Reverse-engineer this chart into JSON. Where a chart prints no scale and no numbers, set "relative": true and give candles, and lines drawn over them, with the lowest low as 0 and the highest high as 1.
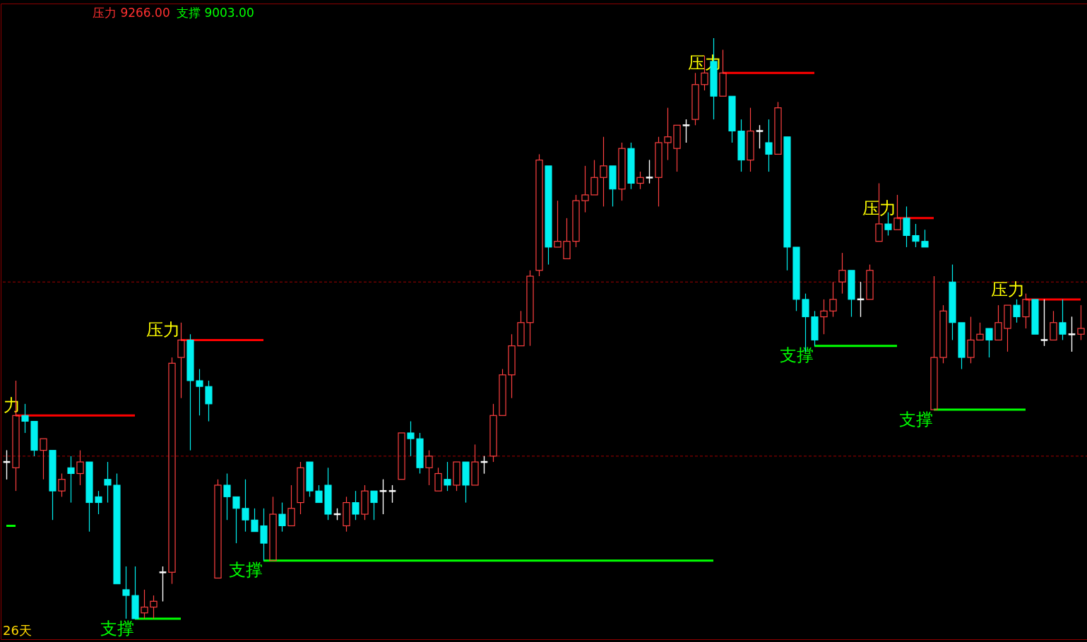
{
  "chart_data": {
    "type": "candlestick",
    "relative": true,
    "categories": [
      null,
      null,
      null,
      null,
      null,
      null,
      null,
      null,
      null,
      null,
      null,
      null,
      null,
      null,
      null,
      null,
      null,
      null,
      null,
      null,
      null,
      null,
      null,
      null,
      null,
      null,
      null,
      null,
      null,
      null,
      null,
      null,
      null,
      null,
      null,
      null,
      null,
      null,
      null,
      null,
      null,
      null,
      null,
      null,
      null,
      null,
      null,
      null,
      null,
      null,
      null,
      null,
      null,
      null,
      null,
      null,
      null,
      null,
      null,
      null,
      null,
      null,
      null,
      null,
      null,
      null,
      null,
      null,
      null,
      null,
      null,
      null,
      null,
      null,
      null,
      null,
      null,
      null,
      null,
      null,
      null,
      null,
      null,
      null,
      null,
      null,
      null,
      null,
      null,
      null,
      null,
      null,
      null,
      null,
      null,
      null,
      null,
      null,
      null,
      null,
      null,
      null,
      null,
      null,
      null,
      null,
      null,
      null,
      null,
      null,
      null,
      null,
      null,
      null,
      null,
      null,
      null,
      null
    ],
    "ohlc": [
      [
        0.27,
        0.29,
        0.24,
        0.27
      ],
      [
        0.26,
        0.41,
        0.22,
        0.35
      ],
      [
        0.35,
        0.37,
        0.32,
        0.34
      ],
      [
        0.34,
        0.34,
        0.28,
        0.29
      ],
      [
        0.29,
        0.31,
        0.24,
        0.31
      ],
      [
        0.29,
        0.29,
        0.17,
        0.22
      ],
      [
        0.22,
        0.25,
        0.21,
        0.24
      ],
      [
        0.26,
        0.28,
        0.2,
        0.25
      ],
      [
        0.25,
        0.29,
        0.23,
        0.27
      ],
      [
        0.27,
        0.27,
        0.15,
        0.2
      ],
      [
        0.21,
        0.22,
        0.18,
        0.2
      ],
      [
        0.24,
        0.27,
        0.2,
        0.23
      ],
      [
        0.23,
        0.25,
        0.06,
        0.06
      ],
      [
        0.05,
        0.09,
        0,
        0.04
      ],
      [
        0.04,
        0.09,
        0,
        0
      ],
      [
        0.01,
        0.05,
        0,
        0.02
      ],
      [
        0.02,
        0.04,
        0,
        0.03
      ],
      [
        0.08,
        0.09,
        0.03,
        0.08
      ],
      [
        0.08,
        0.45,
        0.06,
        0.44
      ],
      [
        0.45,
        0.51,
        0.38,
        0.48
      ],
      [
        0.48,
        0.49,
        0.29,
        0.41
      ],
      [
        0.41,
        0.43,
        0.35,
        0.4
      ],
      [
        0.4,
        0.41,
        0.34,
        0.37
      ],
      [
        0.07,
        0.24,
        0.07,
        0.23
      ],
      [
        0.23,
        0.25,
        0.17,
        0.21
      ],
      [
        0.21,
        0.21,
        0.13,
        0.19
      ],
      [
        0.19,
        0.24,
        0.15,
        0.17
      ],
      [
        0.17,
        0.19,
        0.15,
        0.15
      ],
      [
        0.16,
        0.19,
        0.1,
        0.13
      ],
      [
        0.1,
        0.21,
        0.1,
        0.18
      ],
      [
        0.18,
        0.2,
        0.15,
        0.16
      ],
      [
        0.16,
        0.23,
        0.16,
        0.19
      ],
      [
        0.2,
        0.27,
        0.18,
        0.26
      ],
      [
        0.27,
        0.27,
        0.21,
        0.22
      ],
      [
        0.22,
        0.23,
        0.2,
        0.2
      ],
      [
        0.23,
        0.26,
        0.17,
        0.18
      ],
      [
        0.18,
        0.19,
        0.17,
        0.18
      ],
      [
        0.16,
        0.21,
        0.15,
        0.2
      ],
      [
        0.2,
        0.22,
        0.17,
        0.18
      ],
      [
        0.18,
        0.23,
        0.17,
        0.22
      ],
      [
        0.22,
        0.22,
        0.17,
        0.2
      ],
      [
        0.22,
        0.24,
        0.18,
        0.22
      ],
      [
        0.22,
        0.23,
        0.2,
        0.22
      ],
      [
        0.24,
        0.32,
        0.24,
        0.32
      ],
      [
        0.32,
        0.34,
        0.28,
        0.31
      ],
      [
        0.31,
        0.32,
        0.25,
        0.26
      ],
      [
        0.26,
        0.29,
        0.23,
        0.28
      ],
      [
        0.22,
        0.26,
        0.22,
        0.25
      ],
      [
        0.24,
        0.27,
        0.22,
        0.23
      ],
      [
        0.23,
        0.27,
        0.22,
        0.27
      ],
      [
        0.27,
        0.27,
        0.2,
        0.23
      ],
      [
        0.23,
        0.3,
        0.23,
        0.27
      ],
      [
        0.27,
        0.28,
        0.25,
        0.27
      ],
      [
        0.28,
        0.37,
        0.27,
        0.35
      ],
      [
        0.35,
        0.43,
        0.35,
        0.42
      ],
      [
        0.42,
        0.49,
        0.38,
        0.47
      ],
      [
        0.47,
        0.53,
        0.47,
        0.51
      ],
      [
        0.51,
        0.6,
        0.47,
        0.59
      ],
      [
        0.6,
        0.8,
        0.59,
        0.79
      ],
      [
        0.78,
        0.78,
        0.61,
        0.64
      ],
      [
        0.64,
        0.72,
        0.64,
        0.65
      ],
      [
        0.62,
        0.69,
        0.62,
        0.65
      ],
      [
        0.65,
        0.73,
        0.64,
        0.72
      ],
      [
        0.72,
        0.78,
        0.7,
        0.73
      ],
      [
        0.73,
        0.79,
        0.73,
        0.76
      ],
      [
        0.76,
        0.83,
        0.71,
        0.78
      ],
      [
        0.78,
        0.78,
        0.71,
        0.74
      ],
      [
        0.74,
        0.82,
        0.72,
        0.81
      ],
      [
        0.81,
        0.82,
        0.74,
        0.75
      ],
      [
        0.75,
        0.77,
        0.74,
        0.76
      ],
      [
        0.76,
        0.79,
        0.75,
        0.76
      ],
      [
        0.76,
        0.83,
        0.71,
        0.82
      ],
      [
        0.82,
        0.88,
        0.79,
        0.83
      ],
      [
        0.81,
        0.85,
        0.77,
        0.85
      ],
      [
        0.85,
        0.86,
        0.82,
        0.85
      ],
      [
        0.86,
        0.94,
        0.85,
        0.92
      ],
      [
        0.92,
        0.97,
        0.91,
        0.94
      ],
      [
        0.96,
        1,
        0.86,
        0.9
      ],
      [
        0.9,
        0.98,
        0.9,
        0.94
      ],
      [
        0.9,
        0.9,
        0.82,
        0.84
      ],
      [
        0.84,
        0.86,
        0.77,
        0.79
      ],
      [
        0.79,
        0.88,
        0.77,
        0.84
      ],
      [
        0.84,
        0.85,
        0.81,
        0.84
      ],
      [
        0.82,
        0.86,
        0.77,
        0.8
      ],
      [
        0.8,
        0.89,
        0.8,
        0.88
      ],
      [
        0.83,
        0.83,
        0.6,
        0.64
      ],
      [
        0.64,
        0.64,
        0.53,
        0.55
      ],
      [
        0.55,
        0.56,
        0.46,
        0.52
      ],
      [
        0.52,
        0.53,
        0.47,
        0.48
      ],
      [
        0.52,
        0.55,
        0.49,
        0.53
      ],
      [
        0.53,
        0.58,
        0.52,
        0.55
      ],
      [
        0.58,
        0.63,
        0.56,
        0.6
      ],
      [
        0.6,
        0.6,
        0.52,
        0.55
      ],
      [
        0.55,
        0.58,
        0.52,
        0.55
      ],
      [
        0.55,
        0.61,
        0.55,
        0.6
      ],
      [
        0.65,
        0.75,
        0.65,
        0.68
      ],
      [
        0.68,
        0.7,
        0.66,
        0.67
      ],
      [
        0.67,
        0.73,
        0.67,
        0.69
      ],
      [
        0.69,
        0.71,
        0.64,
        0.66
      ],
      [
        0.66,
        0.68,
        0.64,
        0.65
      ],
      [
        0.65,
        0.67,
        0.64,
        0.64
      ],
      [
        0.36,
        0.59,
        0.36,
        0.45
      ],
      [
        0.45,
        0.54,
        0.44,
        0.53
      ],
      [
        0.58,
        0.61,
        0.48,
        0.51
      ],
      [
        0.51,
        0.51,
        0.43,
        0.45
      ],
      [
        0.45,
        0.52,
        0.44,
        0.48
      ],
      [
        0.48,
        0.51,
        0.48,
        0.49
      ],
      [
        0.5,
        0.5,
        0.45,
        0.48
      ],
      [
        0.48,
        0.54,
        0.48,
        0.51
      ],
      [
        0.5,
        0.54,
        0.46,
        0.54
      ],
      [
        0.54,
        0.55,
        0.51,
        0.52
      ],
      [
        0.52,
        0.56,
        0.5,
        0.55
      ],
      [
        0.55,
        0.55,
        0.49,
        0.49
      ],
      [
        0.48,
        0.55,
        0.47,
        0.48
      ],
      [
        0.48,
        0.53,
        0.48,
        0.51
      ],
      [
        0.51,
        0.55,
        0.48,
        0.49
      ],
      [
        0.49,
        0.52,
        0.46,
        0.49
      ],
      [
        0.49,
        0.54,
        0.48,
        0.5
      ]
    ],
    "series": [
      {
        "type": "line",
        "name": "力",
        "color": "#ff0000",
        "values": [
          null,
          0.35,
          0.35,
          0.35,
          0.35,
          0.35,
          0.35,
          0.35,
          0.35,
          0.35,
          0.35,
          0.35,
          0.35,
          0.35,
          0.35,
          null,
          null,
          null,
          null,
          null,
          null,
          null,
          null,
          null,
          null,
          null,
          null,
          null,
          null,
          null,
          null,
          null,
          null,
          null,
          null,
          null,
          null,
          null,
          null,
          null,
          null,
          null,
          null,
          null,
          null,
          null,
          null,
          null,
          null,
          null,
          null,
          null,
          null,
          null,
          null,
          null,
          null,
          null,
          null,
          null,
          null,
          null,
          null,
          null,
          null,
          null,
          null,
          null,
          null,
          null,
          null,
          null,
          null,
          null,
          null,
          null,
          null,
          null,
          null,
          null,
          null,
          null,
          null,
          null,
          null,
          null,
          null,
          null,
          null,
          null,
          null,
          null,
          null,
          null,
          null,
          null,
          null,
          null,
          null,
          null,
          null,
          null,
          null,
          null,
          null,
          null,
          null,
          null,
          null,
          null,
          null,
          null,
          null,
          null,
          null,
          null,
          null,
          null
        ]
      },
      {
        "type": "line",
        "name": "压力",
        "color": "#ff0000",
        "values": [
          null,
          null,
          null,
          null,
          null,
          null,
          null,
          null,
          null,
          null,
          null,
          null,
          null,
          null,
          null,
          null,
          null,
          null,
          null,
          0.48,
          0.48,
          0.48,
          0.48,
          0.48,
          0.48,
          0.48,
          0.48,
          0.48,
          0.48,
          null,
          null,
          null,
          null,
          null,
          null,
          null,
          null,
          null,
          null,
          null,
          null,
          null,
          null,
          null,
          null,
          null,
          null,
          null,
          null,
          null,
          null,
          null,
          null,
          null,
          null,
          null,
          null,
          null,
          null,
          null,
          null,
          null,
          null,
          null,
          null,
          null,
          null,
          null,
          null,
          null,
          null,
          null,
          null,
          null,
          null,
          null,
          null,
          null,
          null,
          null,
          null,
          null,
          null,
          null,
          null,
          null,
          null,
          null,
          null,
          null,
          null,
          null,
          null,
          null,
          null,
          null,
          null,
          null,
          null,
          null,
          null,
          null,
          null,
          null,
          null,
          null,
          null,
          null,
          null,
          null,
          null,
          null,
          null,
          null,
          null,
          null,
          null,
          null
        ]
      },
      {
        "type": "line",
        "name": "压力",
        "color": "#ff0000",
        "values": [
          null,
          null,
          null,
          null,
          null,
          null,
          null,
          null,
          null,
          null,
          null,
          null,
          null,
          null,
          null,
          null,
          null,
          null,
          null,
          null,
          null,
          null,
          null,
          null,
          null,
          null,
          null,
          null,
          null,
          null,
          null,
          null,
          null,
          null,
          null,
          null,
          null,
          null,
          null,
          null,
          null,
          null,
          null,
          null,
          null,
          null,
          null,
          null,
          null,
          null,
          null,
          null,
          null,
          null,
          null,
          null,
          null,
          null,
          null,
          null,
          null,
          null,
          null,
          null,
          null,
          null,
          null,
          null,
          null,
          null,
          null,
          null,
          null,
          null,
          null,
          null,
          null,
          null,
          0.94,
          0.94,
          0.94,
          0.94,
          0.94,
          0.94,
          0.94,
          0.94,
          0.94,
          0.94,
          0.94,
          null,
          null,
          null,
          null,
          null,
          null,
          null,
          null,
          null,
          null,
          null,
          null,
          null,
          null,
          null,
          null,
          null,
          null,
          null,
          null,
          null,
          null,
          null,
          null,
          null,
          null,
          null,
          null,
          null
        ]
      },
      {
        "type": "line",
        "name": "压力",
        "color": "#ff0000",
        "values": [
          null,
          null,
          null,
          null,
          null,
          null,
          null,
          null,
          null,
          null,
          null,
          null,
          null,
          null,
          null,
          null,
          null,
          null,
          null,
          null,
          null,
          null,
          null,
          null,
          null,
          null,
          null,
          null,
          null,
          null,
          null,
          null,
          null,
          null,
          null,
          null,
          null,
          null,
          null,
          null,
          null,
          null,
          null,
          null,
          null,
          null,
          null,
          null,
          null,
          null,
          null,
          null,
          null,
          null,
          null,
          null,
          null,
          null,
          null,
          null,
          null,
          null,
          null,
          null,
          null,
          null,
          null,
          null,
          null,
          null,
          null,
          null,
          null,
          null,
          null,
          null,
          null,
          null,
          null,
          null,
          null,
          null,
          null,
          null,
          null,
          null,
          null,
          null,
          null,
          null,
          null,
          null,
          null,
          null,
          null,
          null,
          null,
          0.69,
          0.69,
          0.69,
          0.69,
          0.69,
          null,
          null,
          null,
          null,
          null,
          null,
          null,
          null,
          null,
          null,
          null,
          null,
          null,
          null,
          null,
          null
        ]
      },
      {
        "type": "line",
        "name": "压力",
        "color": "#ff0000",
        "values": [
          null,
          null,
          null,
          null,
          null,
          null,
          null,
          null,
          null,
          null,
          null,
          null,
          null,
          null,
          null,
          null,
          null,
          null,
          null,
          null,
          null,
          null,
          null,
          null,
          null,
          null,
          null,
          null,
          null,
          null,
          null,
          null,
          null,
          null,
          null,
          null,
          null,
          null,
          null,
          null,
          null,
          null,
          null,
          null,
          null,
          null,
          null,
          null,
          null,
          null,
          null,
          null,
          null,
          null,
          null,
          null,
          null,
          null,
          null,
          null,
          null,
          null,
          null,
          null,
          null,
          null,
          null,
          null,
          null,
          null,
          null,
          null,
          null,
          null,
          null,
          null,
          null,
          null,
          null,
          null,
          null,
          null,
          null,
          null,
          null,
          null,
          null,
          null,
          null,
          null,
          null,
          null,
          null,
          null,
          null,
          null,
          null,
          null,
          null,
          null,
          null,
          null,
          null,
          null,
          null,
          null,
          null,
          null,
          null,
          null,
          null,
          0.55,
          0.55,
          0.55,
          0.55,
          0.55,
          0.55,
          0.55
        ]
      },
      {
        "type": "line",
        "color": "#00ff00",
        "values": [
          0.16,
          0.16,
          null,
          null,
          null,
          null,
          null,
          null,
          null,
          null,
          null,
          null,
          null,
          null,
          null,
          null,
          null,
          null,
          null,
          null,
          null,
          null,
          null,
          null,
          null,
          null,
          null,
          null,
          null,
          null,
          null,
          null,
          null,
          null,
          null,
          null,
          null,
          null,
          null,
          null,
          null,
          null,
          null,
          null,
          null,
          null,
          null,
          null,
          null,
          null,
          null,
          null,
          null,
          null,
          null,
          null,
          null,
          null,
          null,
          null,
          null,
          null,
          null,
          null,
          null,
          null,
          null,
          null,
          null,
          null,
          null,
          null,
          null,
          null,
          null,
          null,
          null,
          null,
          null,
          null,
          null,
          null,
          null,
          null,
          null,
          null,
          null,
          null,
          null,
          null,
          null,
          null,
          null,
          null,
          null,
          null,
          null,
          null,
          null,
          null,
          null,
          null,
          null,
          null,
          null,
          null,
          null,
          null,
          null,
          null,
          null,
          null,
          null,
          null,
          null,
          null,
          null,
          null
        ]
      },
      {
        "type": "line",
        "name": "支撑",
        "color": "#00ff00",
        "values": [
          null,
          null,
          null,
          null,
          null,
          null,
          null,
          null,
          null,
          null,
          null,
          null,
          null,
          null,
          0,
          0,
          0,
          0,
          0,
          0,
          null,
          null,
          null,
          null,
          null,
          null,
          null,
          null,
          null,
          null,
          null,
          null,
          null,
          null,
          null,
          null,
          null,
          null,
          null,
          null,
          null,
          null,
          null,
          null,
          null,
          null,
          null,
          null,
          null,
          null,
          null,
          null,
          null,
          null,
          null,
          null,
          null,
          null,
          null,
          null,
          null,
          null,
          null,
          null,
          null,
          null,
          null,
          null,
          null,
          null,
          null,
          null,
          null,
          null,
          null,
          null,
          null,
          null,
          null,
          null,
          null,
          null,
          null,
          null,
          null,
          null,
          null,
          null,
          null,
          null,
          null,
          null,
          null,
          null,
          null,
          null,
          null,
          null,
          null,
          null,
          null,
          null,
          null,
          null,
          null,
          null,
          null,
          null,
          null,
          null,
          null,
          null,
          null,
          null,
          null,
          null,
          null,
          null
        ]
      },
      {
        "type": "line",
        "name": "支撑",
        "color": "#00ff00",
        "values": [
          null,
          null,
          null,
          null,
          null,
          null,
          null,
          null,
          null,
          null,
          null,
          null,
          null,
          null,
          null,
          null,
          null,
          null,
          null,
          null,
          null,
          null,
          null,
          null,
          null,
          null,
          null,
          null,
          0.1,
          0.1,
          0.1,
          0.1,
          0.1,
          0.1,
          0.1,
          0.1,
          0.1,
          0.1,
          0.1,
          0.1,
          0.1,
          0.1,
          0.1,
          0.1,
          0.1,
          0.1,
          0.1,
          0.1,
          0.1,
          0.1,
          0.1,
          0.1,
          0.1,
          0.1,
          0.1,
          0.1,
          0.1,
          0.1,
          0.1,
          0.1,
          0.1,
          0.1,
          0.1,
          0.1,
          0.1,
          0.1,
          0.1,
          0.1,
          0.1,
          0.1,
          0.1,
          0.1,
          0.1,
          0.1,
          0.1,
          0.1,
          0.1,
          0.1,
          null,
          null,
          null,
          null,
          null,
          null,
          null,
          null,
          null,
          null,
          null,
          null,
          null,
          null,
          null,
          null,
          null,
          null,
          null,
          null,
          null,
          null,
          null,
          null,
          null,
          null,
          null,
          null,
          null,
          null,
          null,
          null,
          null,
          null,
          null,
          null,
          null,
          null,
          null,
          null
        ]
      },
      {
        "type": "line",
        "name": "支撑",
        "color": "#00ff00",
        "values": [
          null,
          null,
          null,
          null,
          null,
          null,
          null,
          null,
          null,
          null,
          null,
          null,
          null,
          null,
          null,
          null,
          null,
          null,
          null,
          null,
          null,
          null,
          null,
          null,
          null,
          null,
          null,
          null,
          null,
          null,
          null,
          null,
          null,
          null,
          null,
          null,
          null,
          null,
          null,
          null,
          null,
          null,
          null,
          null,
          null,
          null,
          null,
          null,
          null,
          null,
          null,
          null,
          null,
          null,
          null,
          null,
          null,
          null,
          null,
          null,
          null,
          null,
          null,
          null,
          null,
          null,
          null,
          null,
          null,
          null,
          null,
          null,
          null,
          null,
          null,
          null,
          null,
          null,
          null,
          null,
          null,
          null,
          null,
          null,
          null,
          null,
          null,
          null,
          0.47,
          0.47,
          0.47,
          0.47,
          0.47,
          0.47,
          0.47,
          0.47,
          0.47,
          0.47,
          null,
          null,
          null,
          null,
          null,
          null,
          null,
          null,
          null,
          null,
          null,
          null,
          null,
          null,
          null,
          null,
          null,
          null,
          null,
          null
        ]
      },
      {
        "type": "line",
        "name": "支撑",
        "color": "#00ff00",
        "values": [
          null,
          null,
          null,
          null,
          null,
          null,
          null,
          null,
          null,
          null,
          null,
          null,
          null,
          null,
          null,
          null,
          null,
          null,
          null,
          null,
          null,
          null,
          null,
          null,
          null,
          null,
          null,
          null,
          null,
          null,
          null,
          null,
          null,
          null,
          null,
          null,
          null,
          null,
          null,
          null,
          null,
          null,
          null,
          null,
          null,
          null,
          null,
          null,
          null,
          null,
          null,
          null,
          null,
          null,
          null,
          null,
          null,
          null,
          null,
          null,
          null,
          null,
          null,
          null,
          null,
          null,
          null,
          null,
          null,
          null,
          null,
          null,
          null,
          null,
          null,
          null,
          null,
          null,
          null,
          null,
          null,
          null,
          null,
          null,
          null,
          null,
          null,
          null,
          null,
          null,
          null,
          null,
          null,
          null,
          null,
          null,
          null,
          null,
          null,
          null,
          null,
          0.36,
          0.36,
          0.36,
          0.36,
          0.36,
          0.36,
          0.36,
          0.36,
          0.36,
          0.36,
          0.36,
          null,
          null,
          null,
          null,
          null,
          null
        ]
      }
    ],
    "ref_lines": [
      {
        "axis": "y",
        "value": 0.58,
        "color": "#a00000",
        "line_style": "dashed"
      },
      {
        "axis": "y",
        "value": 0.28,
        "color": "#a00000",
        "line_style": "dashed"
      }
    ],
    "annotations": [
      "压力 9266.00",
      "支撑 9003.00",
      "26天"
    ]
  }
}
